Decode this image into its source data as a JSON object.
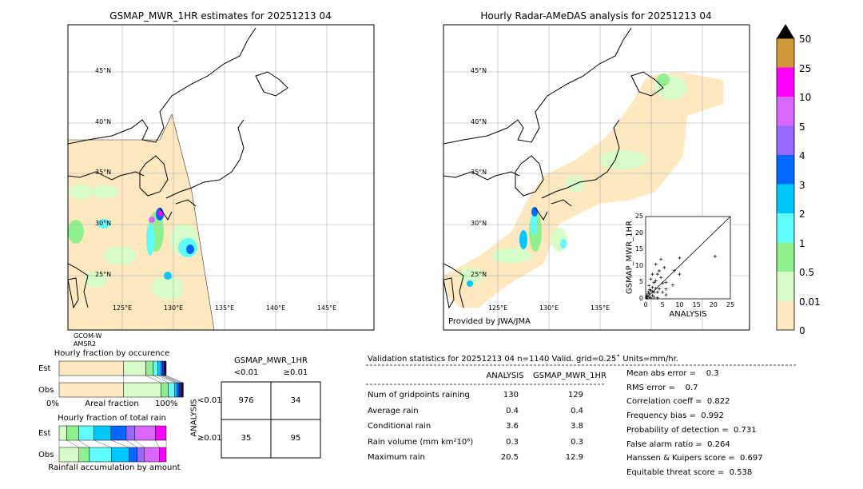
{
  "left_map": {
    "title": "GSMAP_MWR_1HR estimates for 20251213 04",
    "satellite_label": [
      "GCOM-W",
      "AMSR2"
    ]
  },
  "right_map": {
    "title": "Hourly Radar-AMeDAS analysis for 20251213 04",
    "credit": "Provided by JWA/JMA"
  },
  "lat_labels": [
    "45°N",
    "40°N",
    "35°N",
    "30°N",
    "25°N"
  ],
  "lon_labels": [
    "125°E",
    "130°E",
    "135°E",
    "140°E",
    "145°E"
  ],
  "colorbar": {
    "labels": [
      "50",
      "25",
      "10",
      "5",
      "4",
      "3",
      "2",
      "1",
      "0.5",
      "0.01",
      "0"
    ],
    "colors": [
      "#d09838",
      "#fc00fc",
      "#d868fc",
      "#9868fc",
      "#0068fc",
      "#00c8fc",
      "#60fcfc",
      "#90f090",
      "#d8fcc8",
      "#fde8c0"
    ],
    "overflow_color": "#000000"
  },
  "chart_data": [
    {
      "type": "scatter",
      "xlabel": "ANALYSIS",
      "ylabel": "GSMAP_MWR_1HR",
      "xlim": [
        0,
        25
      ],
      "ylim": [
        0,
        25
      ],
      "xticks": [
        "0",
        "5",
        "10",
        "15",
        "20",
        "25"
      ],
      "yticks": [
        "0",
        "5",
        "10",
        "15",
        "20",
        "25"
      ],
      "points": [
        [
          20.5,
          12.9
        ],
        [
          10,
          12.4
        ],
        [
          4.5,
          12
        ],
        [
          3,
          10.5
        ],
        [
          5.5,
          9.5
        ],
        [
          4,
          8.5
        ],
        [
          8.5,
          8.6
        ],
        [
          2,
          7.5
        ],
        [
          3.5,
          7.5
        ],
        [
          10,
          7.5
        ],
        [
          4.5,
          6.5
        ],
        [
          1.5,
          6
        ],
        [
          3,
          5.5
        ],
        [
          2.5,
          5
        ],
        [
          5,
          4.8
        ],
        [
          6,
          5
        ],
        [
          8,
          4.2
        ],
        [
          1,
          4
        ],
        [
          2,
          3.5
        ],
        [
          3,
          3.2
        ],
        [
          4,
          3
        ],
        [
          6,
          3
        ],
        [
          1.5,
          2.5
        ],
        [
          2.5,
          2
        ],
        [
          3.5,
          2
        ],
        [
          5,
          2
        ],
        [
          6,
          1.2
        ],
        [
          1,
          1.5
        ],
        [
          2,
          1
        ],
        [
          0.5,
          0.8
        ],
        [
          1,
          0.5
        ],
        [
          1.5,
          0.3
        ],
        [
          0.3,
          0.2
        ],
        [
          2.5,
          0.5
        ],
        [
          3.5,
          0.3
        ],
        [
          0.8,
          2
        ],
        [
          0.4,
          1.2
        ],
        [
          1.2,
          2.8
        ],
        [
          2,
          2.2
        ],
        [
          0.2,
          0.5
        ]
      ]
    },
    {
      "type": "bar",
      "title": "Hourly fraction by occurence",
      "xlabel": "Areal fraction",
      "xtick_left": "0%",
      "xtick_right": "100%",
      "categories": [
        "Est",
        "Obs"
      ],
      "series": [
        {
          "values": [
            60,
            60
          ]
        },
        {
          "values": [
            21,
            35
          ]
        },
        {
          "values": [
            7,
            7
          ]
        },
        {
          "values": [
            4,
            6
          ]
        },
        {
          "values": [
            3,
            2
          ]
        },
        {
          "values": [
            1.5,
            2
          ]
        },
        {
          "values": [
            2,
            2
          ]
        },
        {
          "values": [
            1.5,
            2
          ]
        }
      ]
    },
    {
      "type": "bar",
      "title": "Hourly fraction of total rain",
      "xlabel": "Rainfall accumulation by amount",
      "categories": [
        "Est",
        "Obs"
      ],
      "series": [
        {
          "values": [
            7,
            17
          ]
        },
        {
          "values": [
            11,
            9
          ]
        },
        {
          "values": [
            14,
            19
          ]
        },
        {
          "values": [
            16,
            15
          ]
        },
        {
          "values": [
            14,
            7
          ]
        },
        {
          "values": [
            8,
            6
          ]
        },
        {
          "values": [
            19,
            13
          ]
        },
        {
          "values": [
            10,
            6
          ]
        }
      ]
    }
  ],
  "contingency": {
    "title": "GSMAP_MWR_1HR",
    "col_labels": [
      "<0.01",
      "≥0.01"
    ],
    "row_axis": "ANALYSIS",
    "row_labels": [
      "<0.01",
      "≥0.01"
    ],
    "cells": [
      [
        "976",
        "34"
      ],
      [
        "35",
        "95"
      ]
    ]
  },
  "stats": {
    "header": "Validation statistics for 20251213 04  n=1140 Valid. grid=0.25˚ Units=mm/hr.",
    "col1": "ANALYSIS",
    "col2": "GSMAP_MWR_1HR",
    "rows": [
      {
        "label": "Num of gridpoints raining",
        "a": "130",
        "b": "129"
      },
      {
        "label": "Average rain",
        "a": "0.4",
        "b": "0.4"
      },
      {
        "label": "Conditional rain",
        "a": "3.6",
        "b": "3.8"
      },
      {
        "label": "Rain volume (mm km²10⁶)",
        "a": "0.3",
        "b": "0.3"
      },
      {
        "label": "Maximum rain",
        "a": "20.5",
        "b": "12.9"
      }
    ],
    "scores": [
      "Mean abs error =    0.3",
      "RMS error =    0.7",
      "Correlation coeff =  0.822",
      "Frequency bias =  0.992",
      "Probability of detection =  0.731",
      "False alarm ratio =  0.264",
      "Hanssen & Kuipers score =  0.697",
      "Equitable threat score =  0.538"
    ]
  }
}
